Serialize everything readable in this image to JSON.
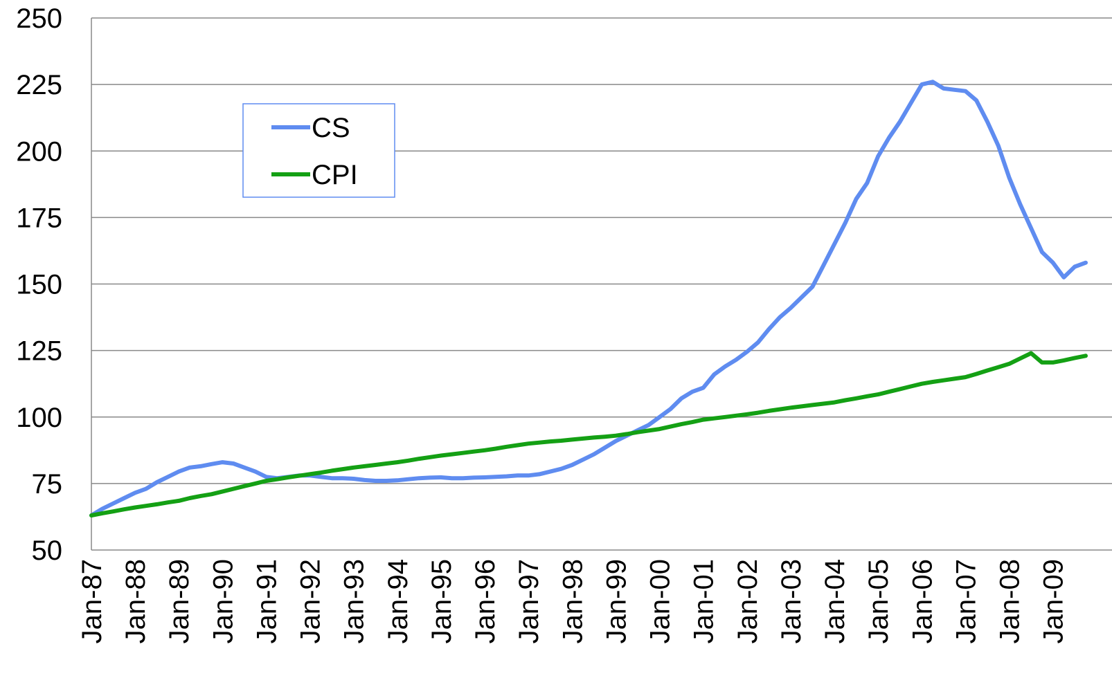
{
  "chart_data": {
    "type": "line",
    "categories": [
      "Jan-87",
      null,
      null,
      null,
      "Jan-88",
      null,
      null,
      null,
      "Jan-89",
      null,
      null,
      null,
      "Jan-90",
      null,
      null,
      null,
      "Jan-91",
      null,
      null,
      null,
      "Jan-92",
      null,
      null,
      null,
      "Jan-93",
      null,
      null,
      null,
      "Jan-94",
      null,
      null,
      null,
      "Jan-95",
      null,
      null,
      null,
      "Jan-96",
      null,
      null,
      null,
      "Jan-97",
      null,
      null,
      null,
      "Jan-98",
      null,
      null,
      null,
      "Jan-99",
      null,
      null,
      null,
      "Jan-00",
      null,
      null,
      null,
      "Jan-01",
      null,
      null,
      null,
      "Jan-02",
      null,
      null,
      null,
      "Jan-03",
      null,
      null,
      null,
      "Jan-04",
      null,
      null,
      null,
      "Jan-05",
      null,
      null,
      null,
      "Jan-06",
      null,
      null,
      null,
      "Jan-07",
      null,
      null,
      null,
      "Jan-08",
      null,
      null,
      null,
      "Jan-09",
      null,
      null,
      null
    ],
    "series": [
      {
        "name": "CS",
        "color": "#5f8cf0",
        "values": [
          63,
          65.5,
          67.5,
          69.5,
          71.5,
          73,
          75.5,
          77.5,
          79.5,
          81,
          81.5,
          82.3,
          83,
          82.5,
          81,
          79.5,
          77.5,
          77,
          77.5,
          78,
          78,
          77.5,
          77,
          77,
          76.8,
          76.3,
          76,
          76,
          76.2,
          76.6,
          77,
          77.2,
          77.3,
          77,
          77,
          77.2,
          77.3,
          77.5,
          77.7,
          78,
          78,
          78.5,
          79.5,
          80.5,
          82,
          84,
          86,
          88.5,
          91,
          93,
          95,
          97,
          100,
          103,
          107,
          109.5,
          111,
          116,
          119,
          121.5,
          124.5,
          128,
          133,
          137.5,
          141,
          145,
          149,
          157,
          165,
          173,
          182,
          188,
          198,
          205,
          211,
          218,
          225,
          226,
          223.5,
          223,
          222.5,
          219,
          211,
          202,
          190,
          180,
          171,
          162,
          158,
          152.5,
          156.5,
          158
        ]
      },
      {
        "name": "CPI",
        "color": "#14a014",
        "values": [
          63,
          63.8,
          64.5,
          65.3,
          66,
          66.6,
          67.2,
          67.9,
          68.5,
          69.5,
          70.3,
          71,
          72,
          73,
          74,
          75,
          76,
          76.6,
          77.3,
          77.9,
          78.5,
          79.1,
          79.8,
          80.4,
          81,
          81.5,
          82,
          82.5,
          83,
          83.6,
          84.3,
          84.9,
          85.5,
          86,
          86.5,
          87,
          87.5,
          88.1,
          88.8,
          89.4,
          90,
          90.4,
          90.8,
          91.1,
          91.5,
          91.9,
          92.3,
          92.6,
          93,
          93.6,
          94.3,
          94.9,
          95.5,
          96.4,
          97.3,
          98.1,
          99,
          99.5,
          100,
          100.5,
          101,
          101.6,
          102.3,
          102.9,
          103.5,
          104,
          104.5,
          105,
          105.5,
          106.3,
          107,
          107.8,
          108.5,
          109.5,
          110.5,
          111.5,
          112.5,
          113.2,
          113.8,
          114.4,
          115,
          116.2,
          117.5,
          118.7,
          120,
          122,
          124,
          120.5,
          120.5,
          121.3,
          122.2,
          123
        ]
      }
    ],
    "ylim": [
      50,
      250
    ],
    "yticks": [
      50,
      75,
      100,
      125,
      150,
      175,
      200,
      225,
      250
    ],
    "grid": true
  }
}
